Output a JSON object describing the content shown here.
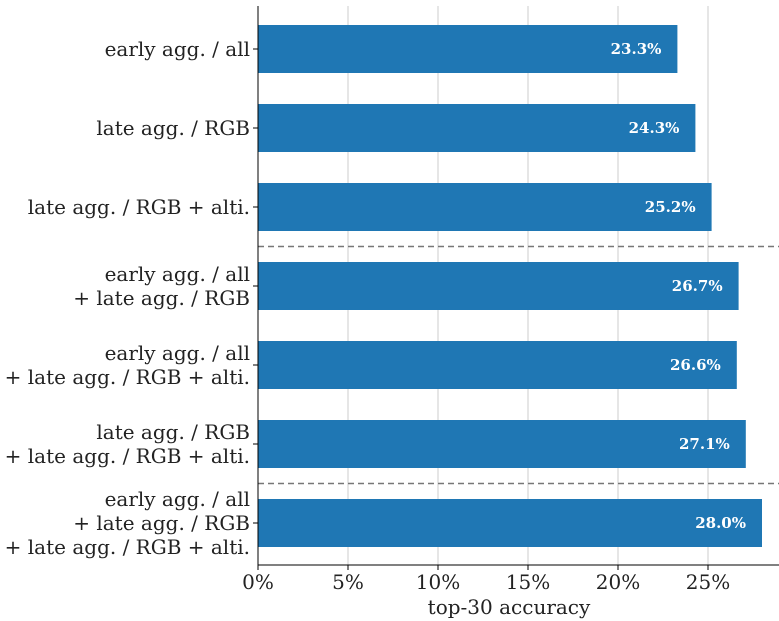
{
  "chart_data": {
    "type": "bar",
    "orientation": "horizontal",
    "categories": [
      [
        "early agg. / all"
      ],
      [
        "late agg. / RGB"
      ],
      [
        "late agg. / RGB + alti."
      ],
      [
        "early agg. / all",
        "+ late agg. / RGB"
      ],
      [
        "early agg. / all",
        "+ late agg. / RGB + alti."
      ],
      [
        "late agg. / RGB",
        "+ late agg. / RGB + alti."
      ],
      [
        "early agg. / all",
        "+ late agg. / RGB",
        "+ late agg. / RGB + alti."
      ]
    ],
    "values": [
      23.3,
      24.3,
      25.2,
      26.7,
      26.6,
      27.1,
      28.0
    ],
    "data_labels": [
      "23.3%",
      "24.3%",
      "25.2%",
      "26.7%",
      "26.6%",
      "27.1%",
      "28.0%"
    ],
    "xlabel": "top-30 accuracy",
    "xticks": [
      0,
      5,
      10,
      15,
      20,
      25
    ],
    "xtick_labels": [
      "0%",
      "5%",
      "10%",
      "15%",
      "20%",
      "25%"
    ],
    "xlim": [
      0,
      28.8
    ],
    "separators_after": [
      2,
      5
    ],
    "grid": "vertical",
    "bar_color": "#1f77b4",
    "grid_color": "#cccccc",
    "separator_color": "#777777"
  }
}
